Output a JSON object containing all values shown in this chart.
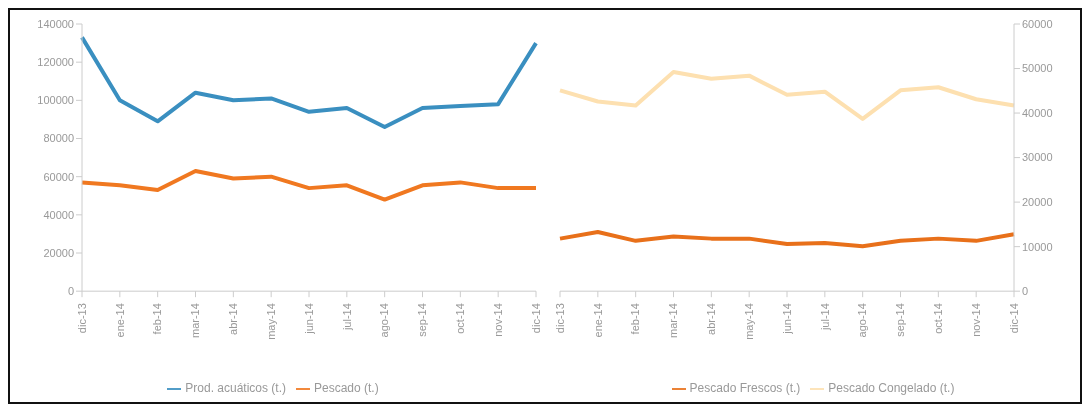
{
  "chart_data": [
    {
      "type": "line",
      "categories": [
        "dic-13",
        "ene-14",
        "feb-14",
        "mar-14",
        "abr-14",
        "may-14",
        "jun-14",
        "jul-14",
        "ago-14",
        "sep-14",
        "oct-14",
        "nov-14",
        "dic-14"
      ],
      "series": [
        {
          "name": "Prod. acuáticos (t.)",
          "color": "#3a8fc0",
          "values": [
            133000,
            100000,
            89000,
            104000,
            100000,
            101000,
            94000,
            96000,
            86000,
            96000,
            97000,
            98000,
            130000
          ]
        },
        {
          "name": "Pescado (t.)",
          "color": "#f07820",
          "values": [
            57000,
            55500,
            53000,
            63000,
            59000,
            60000,
            54000,
            55500,
            48000,
            55500,
            57000,
            54000,
            54000
          ]
        }
      ],
      "ylim": [
        0,
        140000
      ],
      "yticks": [
        0,
        20000,
        40000,
        60000,
        80000,
        100000,
        120000,
        140000
      ],
      "grid": false,
      "legend": "bottom",
      "marker": "none"
    },
    {
      "type": "line",
      "categories": [
        "dic-13",
        "ene-14",
        "feb-14",
        "mar-14",
        "abr-14",
        "may-14",
        "jun-14",
        "jul-14",
        "ago-14",
        "sep-14",
        "oct-14",
        "nov-14",
        "dic-14"
      ],
      "series": [
        {
          "name": "Pescado Frescos (t.)",
          "color": "#e8701a",
          "values": [
            11800,
            13300,
            11300,
            12300,
            11800,
            11800,
            10600,
            10800,
            10100,
            11300,
            11800,
            11300,
            12800
          ],
          "axis": "y2"
        },
        {
          "name": "Pescado Congelado (t.)",
          "color": "#fde0b0",
          "values": [
            45100,
            42600,
            41700,
            49200,
            47700,
            48400,
            44100,
            44800,
            38700,
            45100,
            45800,
            43100,
            41700
          ],
          "axis": "y2"
        }
      ],
      "y2lim": [
        0,
        60000
      ],
      "y2ticks": [
        0,
        10000,
        20000,
        30000,
        40000,
        50000,
        60000
      ],
      "grid": false,
      "legend": "bottom",
      "marker": "none"
    }
  ]
}
